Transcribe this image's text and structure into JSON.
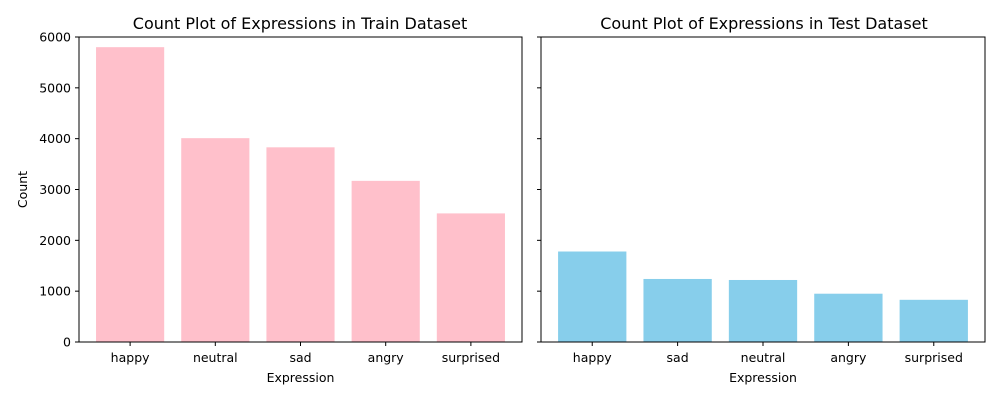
{
  "chart_data": [
    {
      "type": "bar",
      "title": "Count Plot of Expressions in Train Dataset",
      "xlabel": "Expression",
      "ylabel": "Count",
      "categories": [
        "happy",
        "neutral",
        "sad",
        "angry",
        "surprised"
      ],
      "values": [
        5800,
        4010,
        3830,
        3170,
        2530
      ],
      "ylim": [
        0,
        6000
      ],
      "yticks": [
        0,
        1000,
        2000,
        3000,
        4000,
        5000,
        6000
      ],
      "show_ytick_labels": true,
      "color": "#ffc0cb",
      "grid": false
    },
    {
      "type": "bar",
      "title": "Count Plot of Expressions in Test Dataset",
      "xlabel": "Expression",
      "ylabel": "",
      "categories": [
        "happy",
        "sad",
        "neutral",
        "angry",
        "surprised"
      ],
      "values": [
        1780,
        1240,
        1220,
        950,
        830
      ],
      "ylim": [
        0,
        6000
      ],
      "yticks": [
        0,
        1000,
        2000,
        3000,
        4000,
        5000,
        6000
      ],
      "show_ytick_labels": false,
      "color": "#87ceeb",
      "grid": false
    }
  ]
}
